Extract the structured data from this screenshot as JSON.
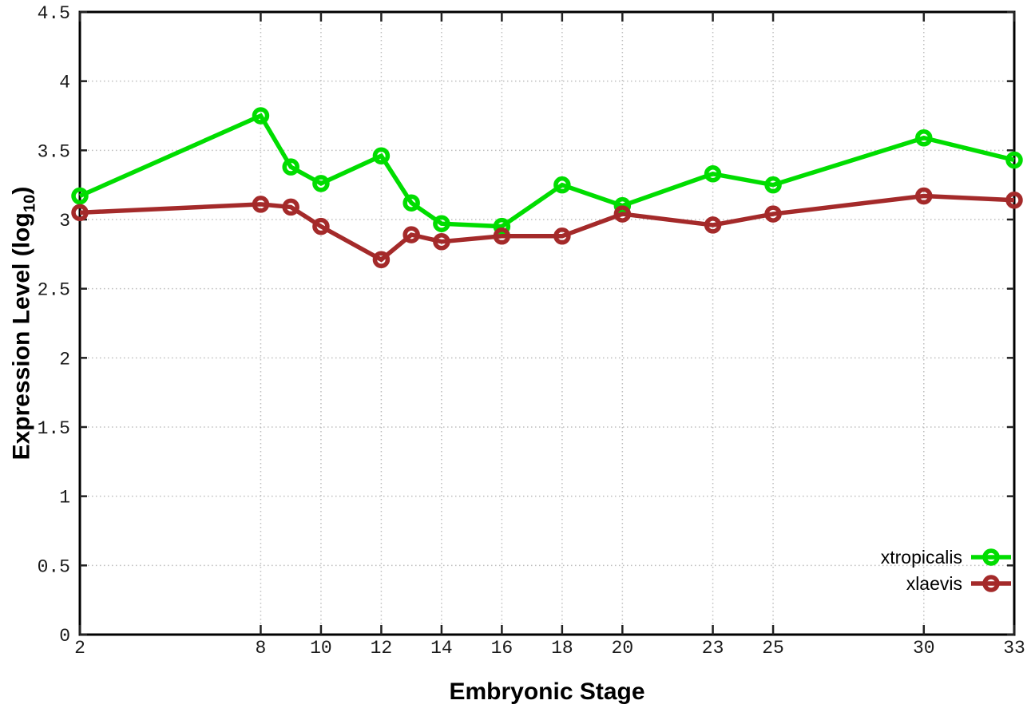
{
  "chart_data": {
    "type": "line",
    "title": "",
    "xlabel": "Embryonic Stage",
    "ylabel": "Expression Level (log10)",
    "ylabel_parts": {
      "main": "Expression Level (log",
      "sub": "10",
      "close": ")"
    },
    "x": [
      2,
      8,
      9,
      10,
      12,
      13,
      14,
      16,
      18,
      20,
      23,
      25,
      30,
      33
    ],
    "series": [
      {
        "name": "xtropicalis",
        "color": "#00dd00",
        "marker_style": "open-circle",
        "values": [
          3.17,
          3.75,
          3.38,
          3.26,
          3.46,
          3.12,
          2.97,
          2.95,
          3.25,
          3.1,
          3.33,
          3.25,
          3.59,
          3.43
        ]
      },
      {
        "name": "xlaevis",
        "color": "#a42a2a",
        "marker_style": "open-circle",
        "values": [
          3.05,
          3.11,
          3.09,
          2.95,
          2.71,
          2.89,
          2.84,
          2.88,
          2.88,
          3.04,
          2.96,
          3.04,
          3.17,
          3.14
        ]
      }
    ],
    "xlim": [
      2,
      33
    ],
    "ylim": [
      0,
      4.5
    ],
    "xticks": {
      "values": [
        2,
        8,
        10,
        12,
        14,
        16,
        18,
        20,
        23,
        25,
        30,
        33
      ],
      "labels": [
        "2",
        "8",
        "10",
        "12",
        "14",
        "16",
        "18",
        "20",
        "23",
        "25",
        "30",
        "33"
      ]
    },
    "yticks": {
      "values": [
        0,
        0.5,
        1,
        1.5,
        2,
        2.5,
        3,
        3.5,
        4,
        4.5
      ],
      "labels": [
        "0",
        "0.5",
        "1",
        "1.5",
        "2",
        "2.5",
        "3",
        "3.5",
        "4",
        "4.5"
      ]
    },
    "grid": true,
    "grid_style": "dotted",
    "legend_position": "bottom-right",
    "colors": {
      "background": "#ffffff",
      "border": "#000000",
      "grid": "#bdbdbd",
      "tick_text": "#1a1a1a"
    }
  }
}
